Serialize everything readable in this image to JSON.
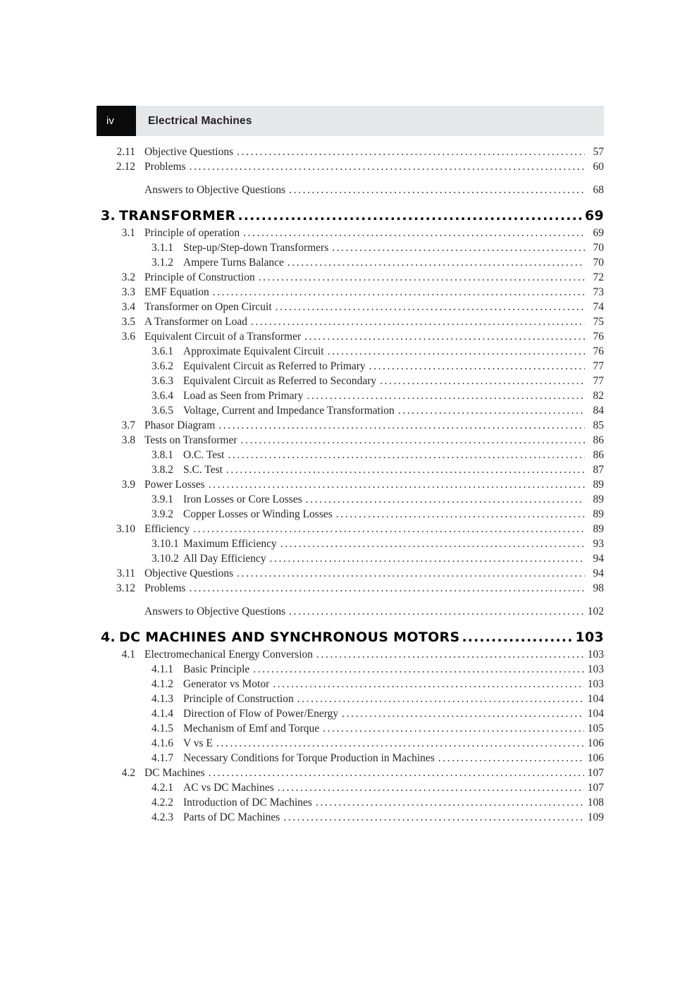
{
  "header": {
    "page_marker": "iv",
    "book_title": "Electrical Machines"
  },
  "toc": {
    "entries": [
      {
        "level": 2,
        "num": "2.11",
        "title": "Objective Questions",
        "page": "57"
      },
      {
        "level": 2,
        "num": "2.12",
        "title": "Problems",
        "page": "60"
      },
      {
        "level": "answers",
        "title": "Answers to Objective Questions",
        "page": "68"
      },
      {
        "level": 1,
        "num": "3.",
        "title": "TRANSFORMER",
        "page": "69"
      },
      {
        "level": 2,
        "num": "3.1",
        "title": "Principle of operation",
        "page": "69"
      },
      {
        "level": 3,
        "num": "3.1.1",
        "title": "Step-up/Step-down Transformers",
        "page": "70"
      },
      {
        "level": 3,
        "num": "3.1.2",
        "title": "Ampere Turns Balance",
        "page": "70"
      },
      {
        "level": 2,
        "num": "3.2",
        "title": "Principle of Construction",
        "page": "72"
      },
      {
        "level": 2,
        "num": "3.3",
        "title": "EMF Equation",
        "page": "73"
      },
      {
        "level": 2,
        "num": "3.4",
        "title": "Transformer on Open Circuit",
        "page": "74"
      },
      {
        "level": 2,
        "num": "3.5",
        "title": "A Transformer on Load",
        "page": "75"
      },
      {
        "level": 2,
        "num": "3.6",
        "title": "Equivalent Circuit of a Transformer",
        "page": "76"
      },
      {
        "level": 3,
        "num": "3.6.1",
        "title": "Approximate Equivalent Circuit",
        "page": "76"
      },
      {
        "level": 3,
        "num": "3.6.2",
        "title": "Equivalent Circuit as Referred to Primary",
        "page": "77"
      },
      {
        "level": 3,
        "num": "3.6.3",
        "title": "Equivalent Circuit as Referred to Secondary",
        "page": "77"
      },
      {
        "level": 3,
        "num": "3.6.4",
        "title": "Load as Seen from Primary",
        "page": "82"
      },
      {
        "level": 3,
        "num": "3.6.5",
        "title": "Voltage, Current and Impedance Transformation",
        "page": "84"
      },
      {
        "level": 2,
        "num": "3.7",
        "title": "Phasor Diagram",
        "page": "85"
      },
      {
        "level": 2,
        "num": "3.8",
        "title": "Tests on Transformer",
        "page": "86"
      },
      {
        "level": 3,
        "num": "3.8.1",
        "title": "O.C. Test",
        "page": "86"
      },
      {
        "level": 3,
        "num": "3.8.2",
        "title": "S.C. Test",
        "page": "87"
      },
      {
        "level": 2,
        "num": "3.9",
        "title": "Power Losses",
        "page": "89"
      },
      {
        "level": 3,
        "num": "3.9.1",
        "title": "Iron Losses or Core Losses",
        "page": "89"
      },
      {
        "level": 3,
        "num": "3.9.2",
        "title": "Copper Losses or Winding Losses",
        "page": "89"
      },
      {
        "level": 2,
        "num": "3.10",
        "title": "Efficiency",
        "page": "89"
      },
      {
        "level": 3,
        "num": "3.10.1",
        "title": "Maximum Efficiency",
        "page": "93"
      },
      {
        "level": 3,
        "num": "3.10.2",
        "title": "All Day Efficiency",
        "page": "94"
      },
      {
        "level": 2,
        "num": "3.11",
        "title": "Objective Questions",
        "page": "94"
      },
      {
        "level": 2,
        "num": "3.12",
        "title": "Problems",
        "page": "98"
      },
      {
        "level": "answers",
        "title": "Answers to Objective Questions",
        "page": "102"
      },
      {
        "level": 1,
        "num": "4.",
        "title": "DC MACHINES AND SYNCHRONOUS MOTORS",
        "page": "103"
      },
      {
        "level": 2,
        "num": "4.1",
        "title": "Electromechanical Energy Conversion",
        "page": "103"
      },
      {
        "level": 3,
        "num": "4.1.1",
        "title": "Basic Principle",
        "page": "103"
      },
      {
        "level": 3,
        "num": "4.1.2",
        "title": "Generator vs Motor",
        "page": "103"
      },
      {
        "level": 3,
        "num": "4.1.3",
        "title": "Principle of Construction",
        "page": "104"
      },
      {
        "level": 3,
        "num": "4.1.4",
        "title": "Direction of Flow of Power/Energy",
        "page": "104"
      },
      {
        "level": 3,
        "num": "4.1.5",
        "title": "Mechanism of Emf and Torque",
        "page": "105"
      },
      {
        "level": 3,
        "num": "4.1.6",
        "title": "V vs E",
        "page": "106"
      },
      {
        "level": 3,
        "num": "4.1.7",
        "title": "Necessary Conditions for Torque Production in Machines",
        "page": "106"
      },
      {
        "level": 2,
        "num": "4.2",
        "title": "DC Machines",
        "page": "107"
      },
      {
        "level": 3,
        "num": "4.2.1",
        "title": "AC vs DC Machines",
        "page": "107"
      },
      {
        "level": 3,
        "num": "4.2.2",
        "title": "Introduction of DC Machines",
        "page": "108"
      },
      {
        "level": 3,
        "num": "4.2.3",
        "title": "Parts of DC Machines",
        "page": "109"
      }
    ]
  },
  "colors": {
    "header_bar": "#e6e7e8",
    "header_box": "#0b0b0b",
    "body_text": "#272727",
    "heading_text": "#050505"
  }
}
